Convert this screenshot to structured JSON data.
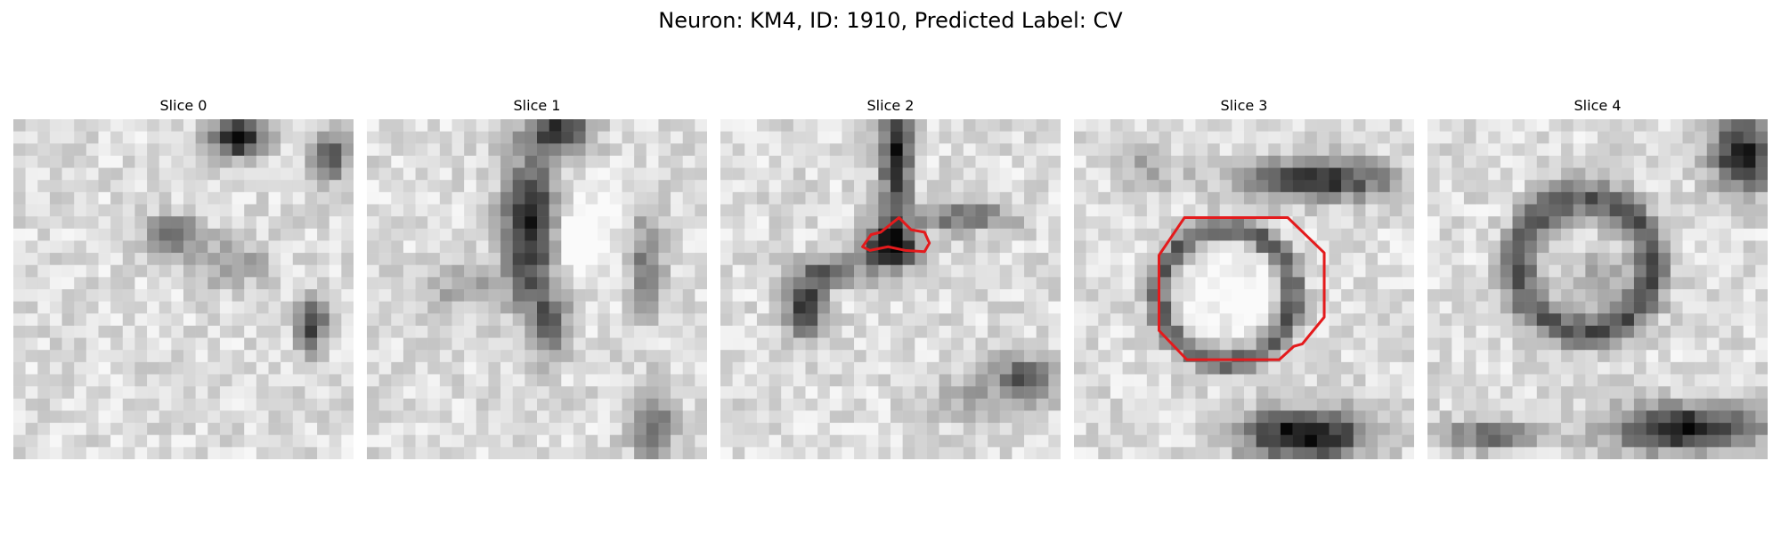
{
  "figure": {
    "title": "Neuron: KM4, ID: 1910, Predicted Label: CV"
  },
  "slices": [
    {
      "title": "Slice 0",
      "contour": false
    },
    {
      "title": "Slice 1",
      "contour": false
    },
    {
      "title": "Slice 2",
      "contour": true
    },
    {
      "title": "Slice 3",
      "contour": true
    },
    {
      "title": "Slice 4",
      "contour": false
    }
  ],
  "colors": {
    "contour": "#e41a1c",
    "background": "#ffffff"
  }
}
